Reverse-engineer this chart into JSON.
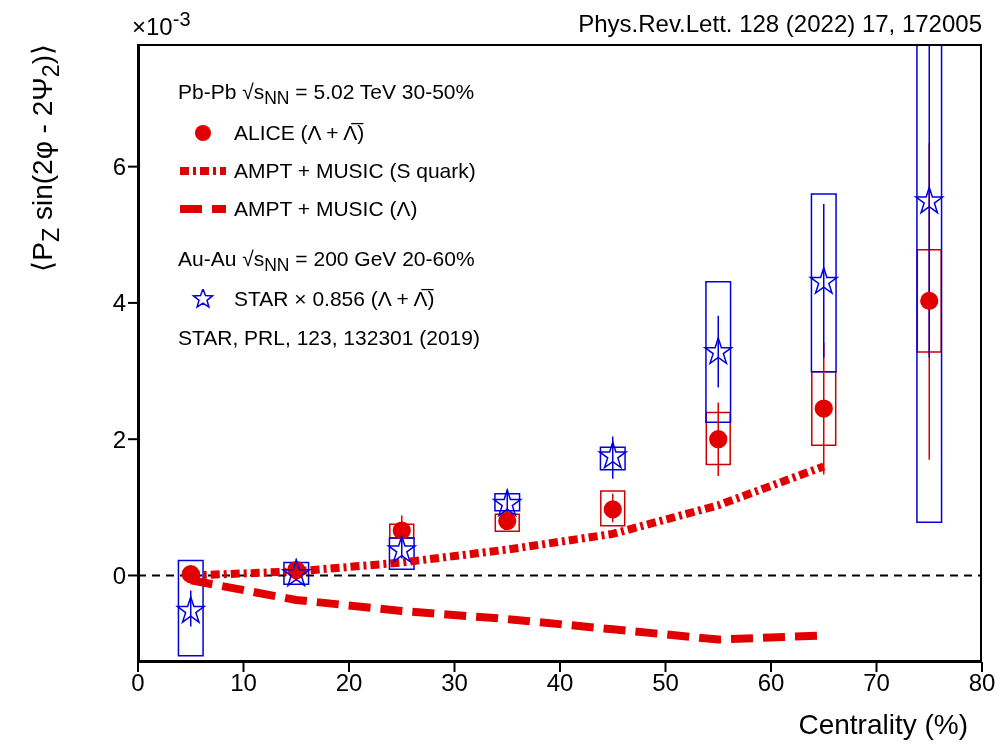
{
  "chart_data": {
    "type": "scatter",
    "xlabel": "Centrality (%)",
    "ylabel": "⟨P$_{Z}$ sin(2φ - 2Ψ$_{2}$)⟩",
    "annotations": [
      "Phys.Rev.Lett. 128 (2022) 17, 172005",
      "×10$^{-3}$",
      "Pb-Pb √s$_{NN}$ = 5.02 TeV 30-50%",
      "Au-Au √s$_{NN}$ = 200 GeV 20-60%",
      "STAR, PRL, 123, 132301 (2019)"
    ],
    "series": [
      {
        "name": "ALICE (Λ + Λ̅)",
        "marker": "circle",
        "color": "#e00000",
        "x": [
          5,
          15,
          25,
          35,
          45,
          55,
          65,
          75
        ],
        "values": [
          0.02,
          0.08,
          0.66,
          0.8,
          0.97,
          2.0,
          2.45,
          4.03
        ],
        "errors": [
          null,
          [
            -0.08,
            0.25
          ],
          [
            0.5,
            0.88
          ],
          [
            0.7,
            0.92
          ],
          [
            0.78,
            1.2
          ],
          [
            1.46,
            2.54
          ],
          [
            1.48,
            3.42
          ],
          [
            1.7,
            6.34
          ]
        ]
      },
      {
        "name": "AMPT + MUSIC (S quark)",
        "type": "line",
        "marker": "none",
        "line_style": "dotted",
        "color": "#e00000",
        "x": [
          5,
          15,
          25,
          35,
          45,
          55,
          65
        ],
        "values": [
          0.0,
          0.06,
          0.19,
          0.38,
          0.61,
          1.03,
          1.6
        ]
      },
      {
        "name": "AMPT + MUSIC (Λ)",
        "type": "line",
        "marker": "none",
        "line_style": "dashed",
        "color": "#e00000",
        "x": [
          5,
          15,
          25,
          35,
          45,
          55,
          65
        ],
        "values": [
          -0.07,
          -0.36,
          -0.52,
          -0.64,
          -0.79,
          -0.94,
          -0.88
        ]
      },
      {
        "name": "STAR × 0.856 (Λ + Λ̅)",
        "marker": "star",
        "color": "#0000dd",
        "x": [
          5,
          15,
          25,
          35,
          45,
          55,
          65,
          75
        ],
        "values": [
          -0.52,
          0.02,
          0.37,
          1.05,
          1.75,
          3.28,
          4.31,
          5.49
        ],
        "errors": [
          [
            -0.75,
            -0.22
          ],
          null,
          [
            0.25,
            0.55
          ],
          [
            0.9,
            1.25
          ],
          [
            1.42,
            2.04
          ],
          [
            2.76,
            3.81
          ],
          [
            3.2,
            5.45
          ],
          [
            3.2,
            7.8
          ]
        ]
      },
      {
        "type": "bar",
        "color": "#cc0000",
        "x": [
          25,
          35,
          45,
          55,
          65,
          75
        ],
        "base": [
          0.55,
          0.65,
          0.73,
          1.63,
          1.91,
          3.28
        ],
        "values": [
          0.2,
          0.25,
          0.51,
          0.76,
          1.08,
          1.5
        ]
      },
      {
        "type": "bar",
        "color": "#0000dd",
        "x": [
          5,
          15,
          25,
          35,
          45,
          55,
          65,
          75
        ],
        "base": [
          -1.18,
          -0.13,
          0.09,
          0.95,
          1.55,
          2.25,
          2.99,
          0.78
        ],
        "values": [
          1.4,
          0.32,
          0.46,
          0.25,
          0.33,
          2.06,
          2.61,
          7.02
        ]
      }
    ],
    "xlim": [
      0,
      80
    ],
    "xticks": [
      0,
      10,
      20,
      30,
      40,
      50,
      60,
      70,
      80
    ],
    "ylim": [
      -1.27,
      7.8
    ],
    "yticks": [
      0,
      2,
      4,
      6
    ],
    "ref_lines": [
      {
        "axis": "y",
        "value": 0,
        "color": "#000000",
        "line_style": "dashed"
      }
    ],
    "legend": "top left"
  }
}
